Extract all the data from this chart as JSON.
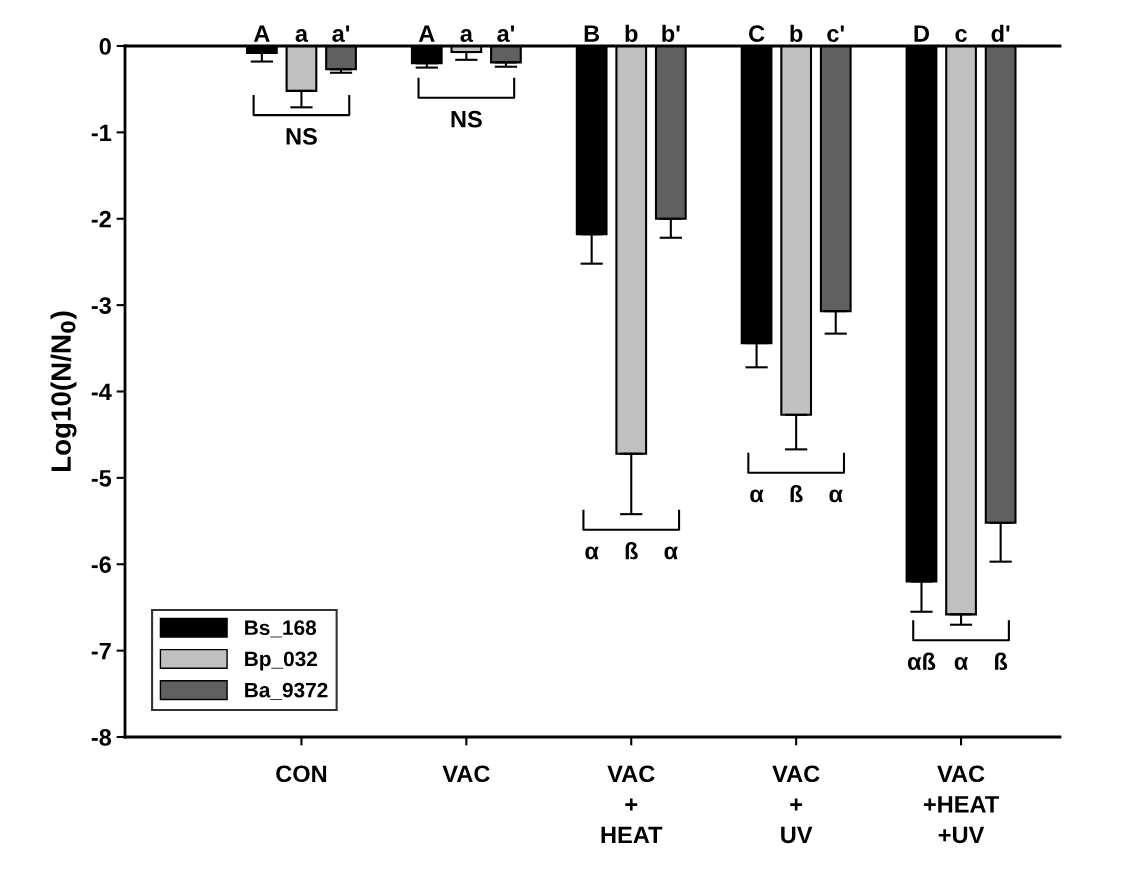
{
  "chart_data": {
    "type": "bar",
    "ylabel": "Log10(N/N$_{0}$)",
    "categories": [
      "CON",
      "VAC",
      "VAC\n+\nHEAT",
      "VAC\n+\nUV",
      "VAC\n+HEAT\n+UV"
    ],
    "series": [
      {
        "name": "Bs_168",
        "color": "#000000",
        "values": [
          -0.08,
          -0.2,
          -2.18,
          -3.44,
          -6.2
        ],
        "errors": [
          [
            -0.18,
            -0.08
          ],
          [
            -0.25,
            -0.2
          ],
          [
            -2.52,
            -2.18
          ],
          [
            -3.72,
            -3.44
          ],
          [
            -6.55,
            -6.2
          ]
        ]
      },
      {
        "name": "Bp_032",
        "color": "#c0c0c0",
        "values": [
          -0.52,
          -0.07,
          -4.72,
          -4.27,
          -6.58
        ],
        "errors": [
          [
            -0.71,
            -0.52
          ],
          [
            -0.16,
            -0.07
          ],
          [
            -5.42,
            -4.72
          ],
          [
            -4.67,
            -4.27
          ],
          [
            -6.7,
            -6.58
          ]
        ]
      },
      {
        "name": "Ba_9372",
        "color": "#606060",
        "values": [
          -0.27,
          -0.19,
          -2.0,
          -3.07,
          -5.52
        ],
        "errors": [
          [
            -0.31,
            -0.27
          ],
          [
            -0.24,
            -0.19
          ],
          [
            -2.22,
            -2.0
          ],
          [
            -3.33,
            -3.07
          ],
          [
            -5.97,
            -5.52
          ]
        ]
      }
    ],
    "ylim": [
      -8,
      0
    ],
    "yticks": [
      -8,
      -7,
      -6,
      -5,
      -4,
      -3,
      -2,
      -1,
      0
    ],
    "grid": false,
    "legend": "bottom left",
    "annotations": [
      "A",
      "a",
      "a'",
      "A",
      "a",
      "a'",
      "B",
      "b",
      "b'",
      "C",
      "b",
      "c'",
      "D",
      "c",
      "d'",
      "NS",
      "NS",
      "α",
      "ß",
      "α",
      "α",
      "ß",
      "α",
      "αß",
      "α",
      "ß"
    ]
  }
}
